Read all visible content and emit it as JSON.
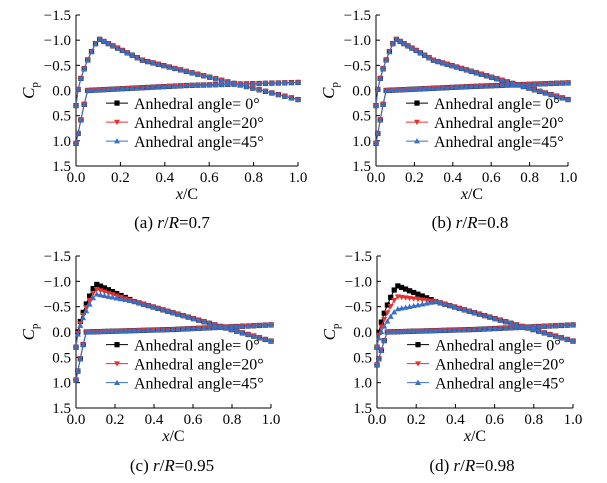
{
  "colors": {
    "s0": "#000000",
    "s20": "#e8312e",
    "s45": "#3a6fc4"
  },
  "chart_data": [
    {
      "type": "scatter",
      "caption": {
        "prefix": "(a) ",
        "var": "r/R",
        "value": "=0.7"
      },
      "xlabel": "x/C",
      "ylabel": "C_p",
      "xlim": [
        0,
        1.0
      ],
      "ylim": [
        -1.5,
        1.5
      ],
      "yinverted": true,
      "xticks": [
        "0.0",
        "0.2",
        "0.4",
        "0.6",
        "0.8",
        "1.0"
      ],
      "yticks": [
        "−1.5",
        "−1.0",
        "−0.5",
        "0.0",
        "0.5",
        "1.0",
        "1.5"
      ],
      "legend": [
        "Anhedral angle= 0°",
        "Anhedral angle=20°",
        "Anhedral angle=45°"
      ],
      "series": [
        {
          "name": "Anhedral angle= 0°",
          "upper_peak": -1.03,
          "lower_level": -0.1,
          "lower_start": 1.05
        },
        {
          "name": "Anhedral angle=20°",
          "upper_peak": -1.03,
          "lower_level": -0.1,
          "lower_start": 1.05
        },
        {
          "name": "Anhedral angle=45°",
          "upper_peak": -1.03,
          "lower_level": -0.1,
          "lower_start": 1.05
        }
      ]
    },
    {
      "type": "scatter",
      "caption": {
        "prefix": "(b) ",
        "var": "r/R",
        "value": "=0.8"
      },
      "xlabel": "x/C",
      "ylabel": "C_p",
      "xlim": [
        0,
        1.0
      ],
      "ylim": [
        -1.5,
        1.5
      ],
      "yinverted": true,
      "xticks": [
        "0.0",
        "0.2",
        "0.4",
        "0.6",
        "0.8",
        "1.0"
      ],
      "yticks": [
        "−1.5",
        "−1.0",
        "−0.5",
        "0.0",
        "0.5",
        "1.0",
        "1.5"
      ],
      "legend": [
        "Anhedral angle= 0°",
        "Anhedral angle=20°",
        "Anhedral angle=45°"
      ],
      "series": [
        {
          "name": "Anhedral angle= 0°",
          "upper_peak": -1.03,
          "lower_level": -0.08,
          "lower_start": 1.05
        },
        {
          "name": "Anhedral angle=20°",
          "upper_peak": -1.03,
          "lower_level": -0.08,
          "lower_start": 1.05
        },
        {
          "name": "Anhedral angle=45°",
          "upper_peak": -1.03,
          "lower_level": -0.08,
          "lower_start": 1.05
        }
      ]
    },
    {
      "type": "scatter",
      "caption": {
        "prefix": "(c) ",
        "var": "r/R",
        "value": "=0.95"
      },
      "xlabel": "x/C",
      "ylabel": "C_p",
      "xlim": [
        0,
        1.0
      ],
      "ylim": [
        -1.5,
        1.5
      ],
      "yinverted": true,
      "xticks": [
        "0.0",
        "0.2",
        "0.4",
        "0.6",
        "0.8",
        "1.0"
      ],
      "yticks": [
        "−1.5",
        "−1.0",
        "−0.5",
        "0.0",
        "0.5",
        "1.0",
        "1.5"
      ],
      "legend": [
        "Anhedral angle= 0°",
        "Anhedral angle=20°",
        "Anhedral angle=45°"
      ],
      "series": [
        {
          "name": "Anhedral angle= 0°",
          "upper_peak": -0.95,
          "lower_level": -0.05,
          "lower_start": 0.95
        },
        {
          "name": "Anhedral angle=20°",
          "upper_peak": -0.85,
          "lower_level": -0.05,
          "lower_start": 0.95
        },
        {
          "name": "Anhedral angle=45°",
          "upper_peak": -0.75,
          "lower_level": -0.05,
          "lower_start": 0.95
        }
      ]
    },
    {
      "type": "scatter",
      "caption": {
        "prefix": "(d) ",
        "var": "r/R",
        "value": "=0.98"
      },
      "xlabel": "x/C",
      "ylabel": "C_p",
      "xlim": [
        0,
        1.0
      ],
      "ylim": [
        -1.5,
        1.5
      ],
      "yinverted": true,
      "xticks": [
        "0.0",
        "0.2",
        "0.4",
        "0.6",
        "0.8",
        "1.0"
      ],
      "yticks": [
        "−1.5",
        "−1.0",
        "−0.5",
        "0.0",
        "0.5",
        "1.0",
        "1.5"
      ],
      "legend": [
        "Anhedral angle= 0°",
        "Anhedral angle=20°",
        "Anhedral angle=45°"
      ],
      "series": [
        {
          "name": "Anhedral angle= 0°",
          "upper_peak": -0.92,
          "lower_level": -0.05,
          "lower_start": 0.65
        },
        {
          "name": "Anhedral angle=20°",
          "upper_peak": -0.7,
          "lower_level": -0.05,
          "lower_start": 0.65
        },
        {
          "name": "Anhedral angle=45°",
          "upper_peak": -0.45,
          "lower_level": -0.05,
          "lower_start": 0.65
        }
      ]
    }
  ]
}
